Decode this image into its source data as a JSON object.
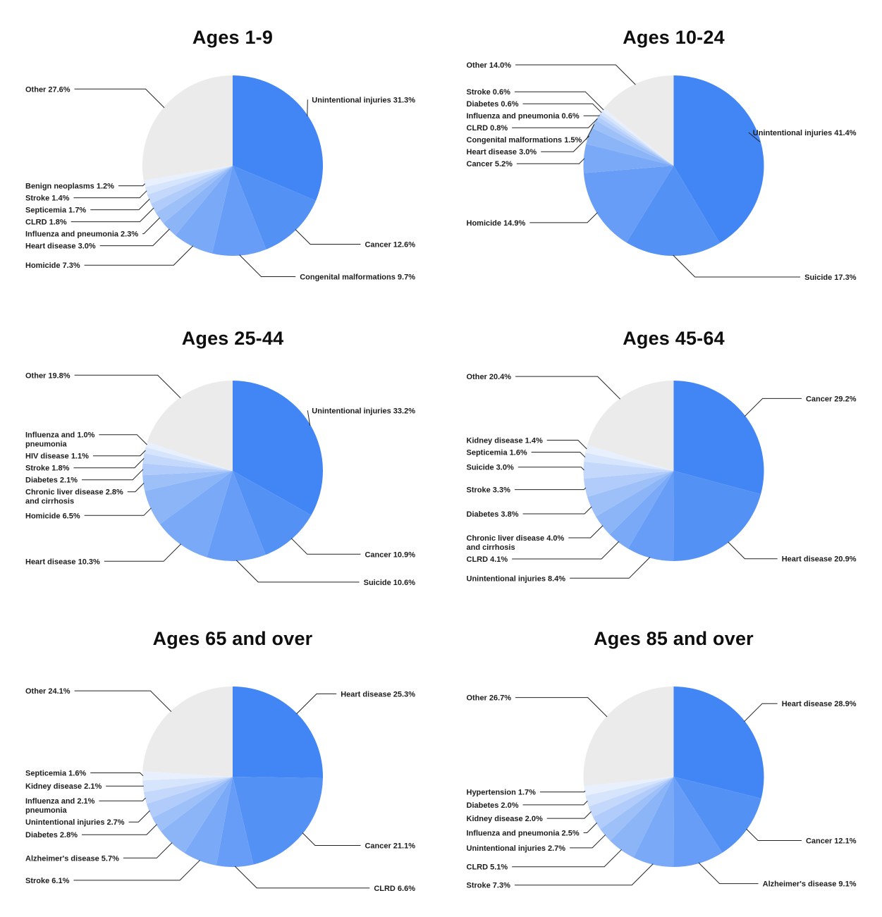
{
  "page": {
    "background": "#ffffff"
  },
  "colors": {
    "slice_gradient_start": "#4285F4",
    "slice_gradient_end": "#E8F0FD",
    "other_slice": "#EBEBEB",
    "label_text": "#1d1d1d",
    "leader_line": "#222222",
    "title_text": "#0e0e0e"
  },
  "chart_data": [
    {
      "type": "pie",
      "title": "Ages 1-9",
      "unit": "%",
      "slices": [
        {
          "label": "Unintentional injuries",
          "pct": 31.3
        },
        {
          "label": "Cancer",
          "pct": 12.6
        },
        {
          "label": "Congenital malformations",
          "pct": 9.7
        },
        {
          "label": "Homicide",
          "pct": 7.3
        },
        {
          "label": "Heart disease",
          "pct": 3.0
        },
        {
          "label": "Influenza and pneumonia",
          "pct": 2.3
        },
        {
          "label": "CLRD",
          "pct": 1.8
        },
        {
          "label": "Septicemia",
          "pct": 1.7
        },
        {
          "label": "Stroke",
          "pct": 1.4
        },
        {
          "label": "Benign neoplasms",
          "pct": 1.2
        },
        {
          "label": "Other",
          "pct": 27.6,
          "is_other": true
        }
      ]
    },
    {
      "type": "pie",
      "title": "Ages 10-24",
      "unit": "%",
      "slices": [
        {
          "label": "Unintentional injuries",
          "pct": 41.4
        },
        {
          "label": "Suicide",
          "pct": 17.3
        },
        {
          "label": "Homicide",
          "pct": 14.9
        },
        {
          "label": "Cancer",
          "pct": 5.2
        },
        {
          "label": "Heart disease",
          "pct": 3.0
        },
        {
          "label": "Congenital malformations",
          "pct": 1.5
        },
        {
          "label": "CLRD",
          "pct": 0.8
        },
        {
          "label": "Influenza and pneumonia",
          "pct": 0.6
        },
        {
          "label": "Diabetes",
          "pct": 0.6
        },
        {
          "label": "Stroke",
          "pct": 0.6
        },
        {
          "label": "Other",
          "pct": 14.0,
          "is_other": true
        }
      ]
    },
    {
      "type": "pie",
      "title": "Ages 25-44",
      "unit": "%",
      "slices": [
        {
          "label": "Unintentional injuries",
          "pct": 33.2
        },
        {
          "label": "Cancer",
          "pct": 10.9
        },
        {
          "label": "Suicide",
          "pct": 10.6
        },
        {
          "label": "Heart disease",
          "pct": 10.3
        },
        {
          "label": "Homicide",
          "pct": 6.5
        },
        {
          "label": "Chronic liver disease and cirrhosis",
          "pct": 2.8,
          "lines": [
            "Chronic liver disease 2.8%",
            "and cirrhosis"
          ]
        },
        {
          "label": "Diabetes",
          "pct": 2.1
        },
        {
          "label": "Stroke",
          "pct": 1.8
        },
        {
          "label": "HIV disease",
          "pct": 1.1
        },
        {
          "label": "Influenza and pneumonia",
          "pct": 1.0,
          "lines": [
            "Influenza and 1.0%",
            "pneumonia"
          ]
        },
        {
          "label": "Other",
          "pct": 19.8,
          "is_other": true
        }
      ]
    },
    {
      "type": "pie",
      "title": "Ages 45-64",
      "unit": "%",
      "slices": [
        {
          "label": "Cancer",
          "pct": 29.2
        },
        {
          "label": "Heart disease",
          "pct": 20.9
        },
        {
          "label": "Unintentional injuries",
          "pct": 8.4
        },
        {
          "label": "CLRD",
          "pct": 4.1
        },
        {
          "label": "Chronic liver disease and cirrhosis",
          "pct": 4.0,
          "lines": [
            "Chronic liver disease 4.0%",
            "and cirrhosis"
          ]
        },
        {
          "label": "Diabetes",
          "pct": 3.8
        },
        {
          "label": "Stroke",
          "pct": 3.3
        },
        {
          "label": "Suicide",
          "pct": 3.0
        },
        {
          "label": "Septicemia",
          "pct": 1.6
        },
        {
          "label": "Kidney disease",
          "pct": 1.4
        },
        {
          "label": "Other",
          "pct": 20.4,
          "is_other": true
        }
      ]
    },
    {
      "type": "pie",
      "title": "Ages 65 and over",
      "unit": "%",
      "slices": [
        {
          "label": "Heart disease",
          "pct": 25.3
        },
        {
          "label": "Cancer",
          "pct": 21.1
        },
        {
          "label": "CLRD",
          "pct": 6.6
        },
        {
          "label": "Stroke",
          "pct": 6.1
        },
        {
          "label": "Alzheimer's disease",
          "pct": 5.7
        },
        {
          "label": "Diabetes",
          "pct": 2.8
        },
        {
          "label": "Unintentional injuries",
          "pct": 2.7
        },
        {
          "label": "Influenza and pneumonia",
          "pct": 2.1,
          "lines": [
            "Influenza and 2.1%",
            "pneumonia"
          ]
        },
        {
          "label": "Kidney disease",
          "pct": 2.1
        },
        {
          "label": "Septicemia",
          "pct": 1.6
        },
        {
          "label": "Other",
          "pct": 24.1,
          "is_other": true
        }
      ]
    },
    {
      "type": "pie",
      "title": "Ages 85 and over",
      "unit": "%",
      "slices": [
        {
          "label": "Heart disease",
          "pct": 28.9
        },
        {
          "label": "Cancer",
          "pct": 12.1
        },
        {
          "label": "Alzheimer's disease",
          "pct": 9.1
        },
        {
          "label": "Stroke",
          "pct": 7.3
        },
        {
          "label": "CLRD",
          "pct": 5.1
        },
        {
          "label": "Unintentional injuries",
          "pct": 2.7
        },
        {
          "label": "Influenza and pneumonia",
          "pct": 2.5
        },
        {
          "label": "Kidney disease",
          "pct": 2.0
        },
        {
          "label": "Diabetes",
          "pct": 2.0
        },
        {
          "label": "Hypertension",
          "pct": 1.7
        },
        {
          "label": "Other",
          "pct": 26.7,
          "is_other": true
        }
      ]
    }
  ]
}
